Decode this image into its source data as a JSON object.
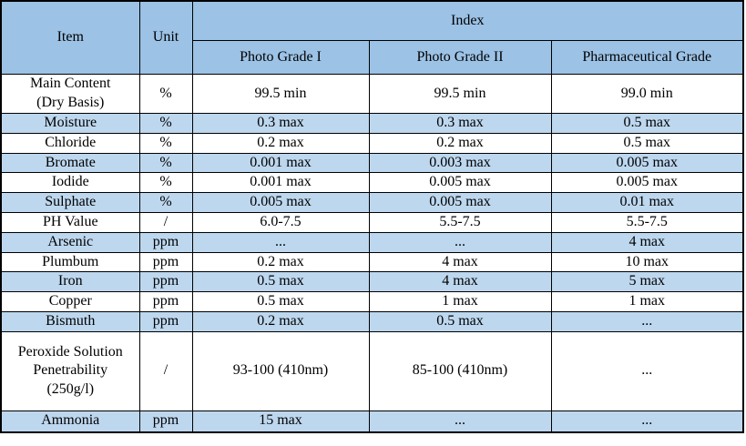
{
  "table": {
    "header": {
      "item": "Item",
      "unit": "Unit",
      "index": "Index",
      "grades": [
        "Photo Grade I",
        "Photo Grade II",
        "Pharmaceutical Grade"
      ]
    },
    "rows": [
      {
        "item": "Main Content\n(Dry Basis)",
        "unit": "%",
        "values": [
          "99.5 min",
          "99.5 min",
          "99.0 min"
        ]
      },
      {
        "item": "Moisture",
        "unit": "%",
        "values": [
          "0.3 max",
          "0.3 max",
          "0.5 max"
        ]
      },
      {
        "item": "Chloride",
        "unit": "%",
        "values": [
          "0.2 max",
          "0.2 max",
          "0.5 max"
        ]
      },
      {
        "item": "Bromate",
        "unit": "%",
        "values": [
          "0.001 max",
          "0.003 max",
          "0.005 max"
        ]
      },
      {
        "item": "Iodide",
        "unit": "%",
        "values": [
          "0.001 max",
          "0.005 max",
          "0.005 max"
        ]
      },
      {
        "item": "Sulphate",
        "unit": "%",
        "values": [
          "0.005 max",
          "0.005 max",
          "0.01 max"
        ]
      },
      {
        "item": "PH Value",
        "unit": "/",
        "values": [
          "6.0-7.5",
          "5.5-7.5",
          "5.5-7.5"
        ]
      },
      {
        "item": "Arsenic",
        "unit": "ppm",
        "values": [
          "...",
          "...",
          "4 max"
        ]
      },
      {
        "item": "Plumbum",
        "unit": "ppm",
        "values": [
          "0.2 max",
          "4 max",
          "10 max"
        ]
      },
      {
        "item": "Iron",
        "unit": "ppm",
        "values": [
          "0.5 max",
          "4 max",
          "5 max"
        ]
      },
      {
        "item": "Copper",
        "unit": "ppm",
        "values": [
          "0.5 max",
          "1 max",
          "1 max"
        ]
      },
      {
        "item": "Bismuth",
        "unit": "ppm",
        "values": [
          "0.2 max",
          "0.5 max",
          "..."
        ]
      },
      {
        "item": "Peroxide Solution\nPenetrability\n(250g/l)",
        "unit": "/",
        "values": [
          "93-100 (410nm)",
          "85-100 (410nm)",
          "..."
        ]
      },
      {
        "item": "Ammonia",
        "unit": "ppm",
        "values": [
          "15 max",
          "...",
          "..."
        ]
      }
    ],
    "colors": {
      "header_bg": "#9CC2E5",
      "stripe_bg": "#BDD7EE",
      "border": "#000000"
    }
  }
}
